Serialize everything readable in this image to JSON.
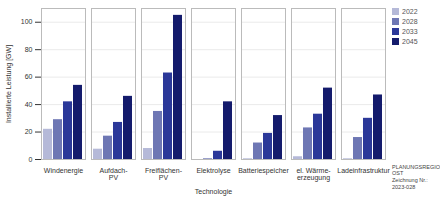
{
  "chart_data": {
    "type": "bar",
    "x_label": "Technologie",
    "y_label": "Installierte Leistung [GW]",
    "categories": [
      "Windenergie",
      "Aufdach-PV",
      "Freiflächen-PV",
      "Elektrolyse",
      "Batteriespeicher",
      "el. Wärme-erzeugung",
      "Ladeinfrastruktur"
    ],
    "series": [
      {
        "name": "2022",
        "color": "#b5b9d8",
        "values": [
          22,
          7.5,
          8,
          0,
          0.5,
          2,
          0.5
        ]
      },
      {
        "name": "2028",
        "color": "#6e77b4",
        "values": [
          29,
          17,
          35,
          0.5,
          12,
          23,
          16
        ]
      },
      {
        "name": "2033",
        "color": "#2b3899",
        "values": [
          42,
          27,
          63,
          6,
          19,
          33,
          30
        ]
      },
      {
        "name": "2045",
        "color": "#141b6c",
        "values": [
          54,
          46,
          105,
          42,
          32,
          52,
          47
        ]
      }
    ],
    "ylim": [
      0,
      110
    ],
    "yticks": [
      0,
      20,
      40,
      60,
      80,
      100
    ],
    "grid": true,
    "legend": "upper right",
    "annotations": [
      "PLANUNGSREGION",
      "OST",
      "Zeichnung Nr.: 2023-028"
    ]
  }
}
